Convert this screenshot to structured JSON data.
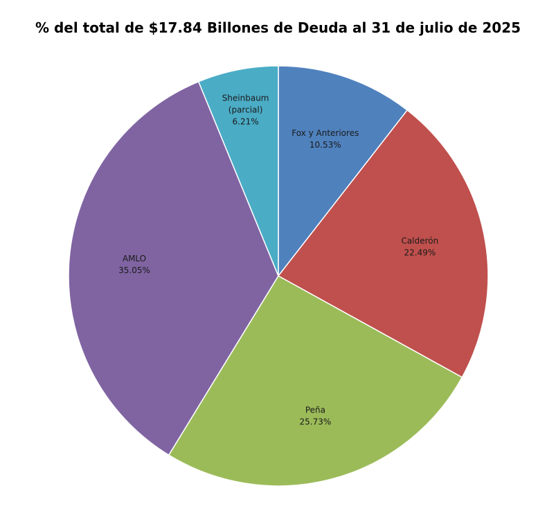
{
  "chart_data": {
    "type": "pie",
    "title": "% del total de $17.84 Billones de Deuda al 31 de julio de 2025",
    "start_angle_deg": 0,
    "direction": "clockwise",
    "legend": "none",
    "slices": [
      {
        "name": "Fox y Anteriores",
        "label_lines": [
          "Fox y Anteriores"
        ],
        "value": 10.53,
        "value_label": "10.53%",
        "color": "#4F81BD"
      },
      {
        "name": "Calderón",
        "label_lines": [
          "Calderón"
        ],
        "value": 22.49,
        "value_label": "22.49%",
        "color": "#C0504D"
      },
      {
        "name": "Peña",
        "label_lines": [
          "Peña"
        ],
        "value": 25.73,
        "value_label": "25.73%",
        "color": "#9BBB59"
      },
      {
        "name": "AMLO",
        "label_lines": [
          "AMLO"
        ],
        "value": 35.05,
        "value_label": "35.05%",
        "color": "#8064A2"
      },
      {
        "name": "Sheinbaum (parcial)",
        "label_lines": [
          "Sheinbaum",
          "(parcial)"
        ],
        "value": 6.21,
        "value_label": "6.21%",
        "color": "#4BACC6"
      }
    ]
  }
}
